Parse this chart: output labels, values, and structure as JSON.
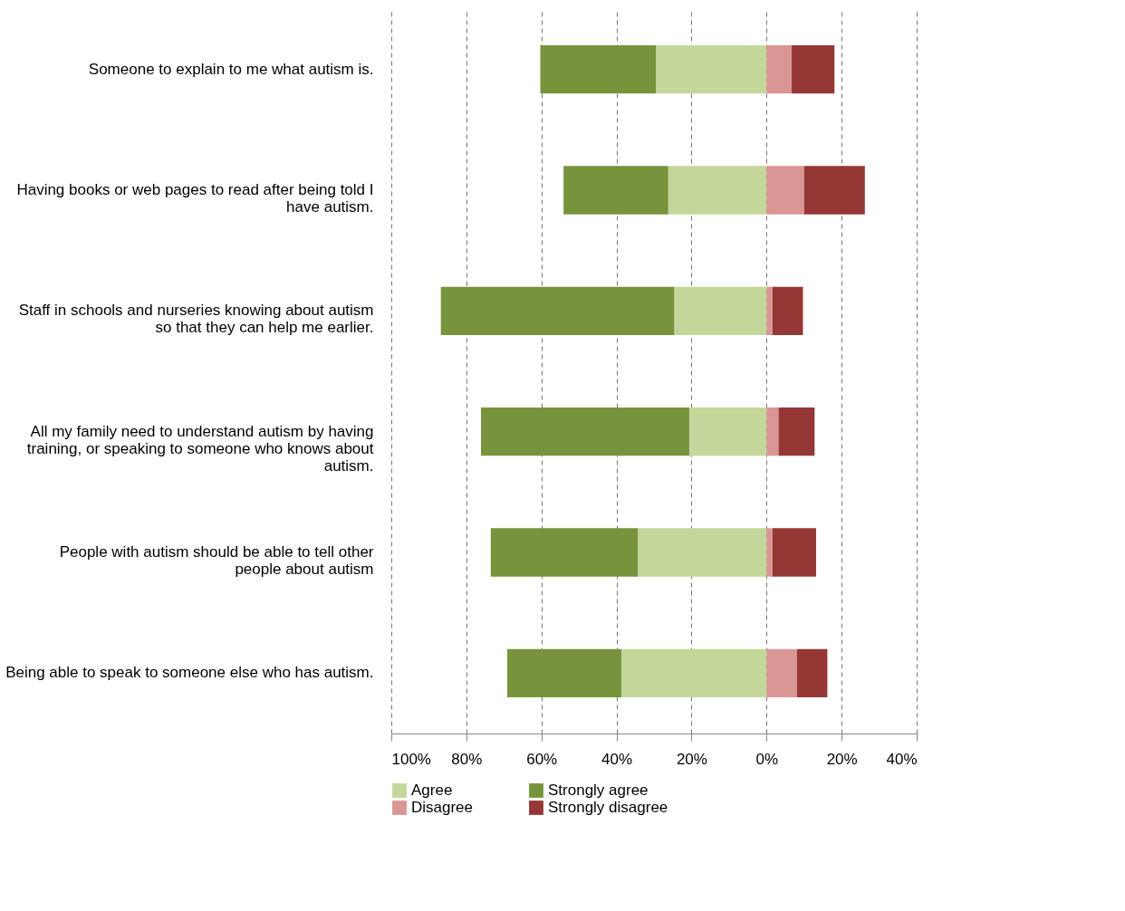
{
  "chart_data": {
    "type": "bar",
    "orientation": "horizontal",
    "stacked": true,
    "categories": [
      "Someone to explain to me what autism is.",
      "Having books or web pages to read after being told I have autism.",
      "Staff in schools and nurseries knowing about autism so that they can help me earlier.",
      "All my family need to understand autism by having training, or speaking to someone who knows about autism.",
      "People with autism should be able to tell other people about autism",
      "Being able to speak to someone else who has autism."
    ],
    "series": [
      {
        "name": "Agree",
        "color": "#c4d79b",
        "values": [
          -29.5,
          -26.2,
          -24.6,
          -20.6,
          -34.3,
          -38.7
        ]
      },
      {
        "name": "Strongly agree",
        "color": "#77933c",
        "values": [
          -30.8,
          -27.9,
          -62.2,
          -55.5,
          -39.2,
          -30.4
        ]
      },
      {
        "name": "Disagree",
        "color": "#da9694",
        "values": [
          6.7,
          10.0,
          1.6,
          3.2,
          1.6,
          8.1
        ]
      },
      {
        "name": "Strongly disagree",
        "color": "#953735",
        "values": [
          11.4,
          16.2,
          8.1,
          9.6,
          11.6,
          8.1
        ]
      }
    ],
    "xlim": [
      -100,
      40
    ],
    "xticks": [
      {
        "value": -100,
        "label": "100%"
      },
      {
        "value": -80,
        "label": "80%"
      },
      {
        "value": -60,
        "label": "60%"
      },
      {
        "value": -40,
        "label": "40%"
      },
      {
        "value": -20,
        "label": "20%"
      },
      {
        "value": 0,
        "label": "0%"
      },
      {
        "value": 20,
        "label": "20%"
      },
      {
        "value": 40,
        "label": "40%"
      }
    ],
    "grid": "x",
    "legend": "bottom"
  }
}
